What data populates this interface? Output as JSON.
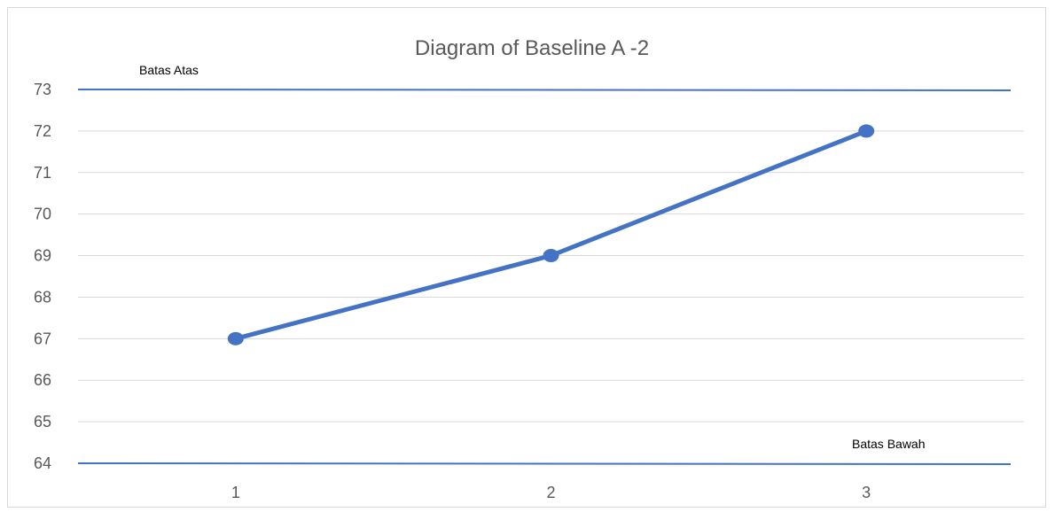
{
  "chart_data": {
    "type": "line",
    "title": "Diagram of Baseline A  -2",
    "categories": [
      "1",
      "2",
      "3"
    ],
    "series": [
      {
        "values": [
          67,
          69,
          72
        ],
        "color": "#4472c4"
      }
    ],
    "ylim": [
      64,
      73
    ],
    "yticks": [
      73,
      72,
      71,
      70,
      69,
      68,
      67,
      66,
      65,
      64
    ],
    "grid": true,
    "legend": "none",
    "reference_lines": [
      {
        "label": "Batas Atas",
        "value": 73,
        "color": "#4472c4"
      },
      {
        "label": "Batas Bawah",
        "value": 64,
        "color": "#4472c4"
      }
    ]
  }
}
